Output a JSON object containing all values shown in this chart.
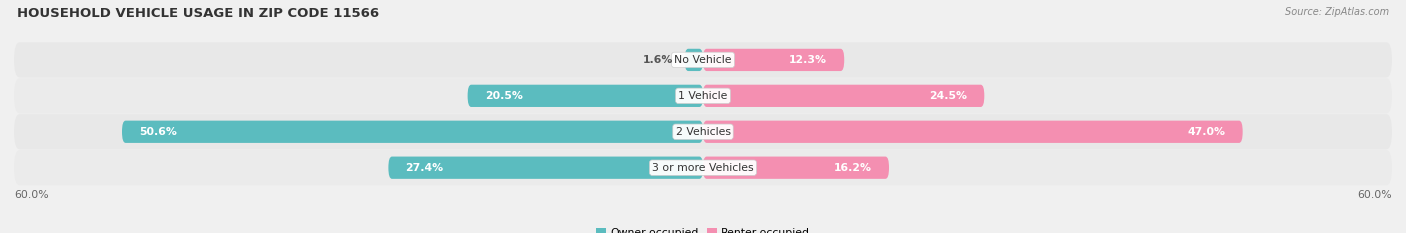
{
  "title": "HOUSEHOLD VEHICLE USAGE IN ZIP CODE 11566",
  "source": "Source: ZipAtlas.com",
  "categories": [
    "No Vehicle",
    "1 Vehicle",
    "2 Vehicles",
    "3 or more Vehicles"
  ],
  "owner_values": [
    1.6,
    20.5,
    50.6,
    27.4
  ],
  "renter_values": [
    12.3,
    24.5,
    47.0,
    16.2
  ],
  "owner_color": "#5bbcbf",
  "renter_color": "#f48fb1",
  "max_val": 60.0,
  "axis_label": "60.0%",
  "legend_owner": "Owner-occupied",
  "legend_renter": "Renter-occupied",
  "bg_color": "#f0f0f0",
  "row_bg_even": "#e8e8e8",
  "row_bg_odd": "#ebebeb",
  "title_color": "#333333",
  "title_fontsize": 9.5,
  "bar_height": 0.62,
  "inner_label_color": "#ffffff",
  "outer_label_color": "#555555",
  "label_fontsize": 7.8,
  "cat_fontsize": 7.8,
  "source_fontsize": 7.0,
  "axis_fontsize": 7.8,
  "inner_threshold_owner": 7.0,
  "inner_threshold_renter": 8.0
}
